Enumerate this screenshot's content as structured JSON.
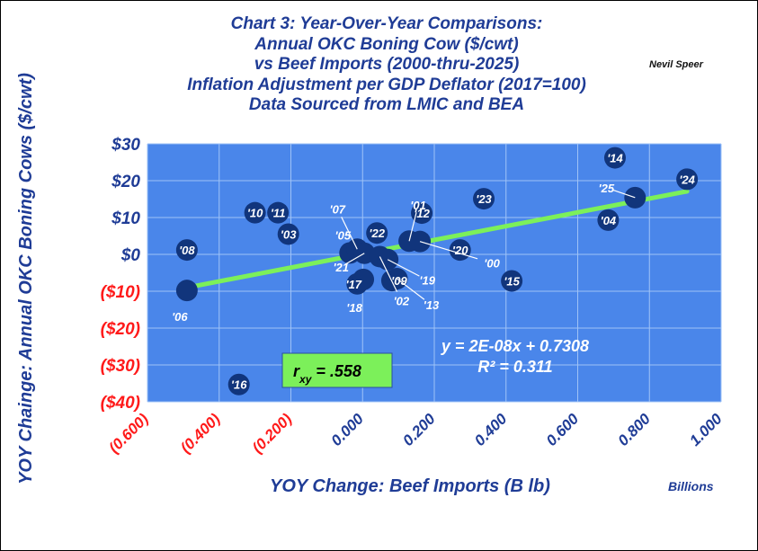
{
  "title_lines": [
    "Chart 3:  Year-Over-Year Comparisons:",
    "Annual OKC Boning Cow ($/cwt)",
    "vs Beef Imports (2000-thru-2025)",
    "Inflation Adjustment per GDP Deflator (2017=100)",
    "Data Sourced from LMIC and BEA"
  ],
  "author": "Nevil Speer",
  "colors": {
    "plot_bg": "#4a86ea",
    "grid": "#9fc3f7",
    "point": "#11357c",
    "trend": "#7cf05a",
    "title": "#1f3c96",
    "negative": "#ff1a1a",
    "rbox": "#7cf05a"
  },
  "chart_data": {
    "type": "scatter",
    "xlabel": "YOY Change:  Beef Imports (B lb)",
    "xunit_label": "Billions",
    "ylabel": "YOY Chainge: Annual OKC Boning Cows ($/cwt)",
    "xlim": [
      -0.6,
      1.0
    ],
    "ylim": [
      -40,
      30
    ],
    "x_ticks": [
      -0.6,
      -0.4,
      -0.2,
      0.0,
      0.2,
      0.4,
      0.6,
      0.8,
      1.0
    ],
    "x_tick_labels": [
      "(0.600)",
      "(0.400)",
      "(0.200)",
      "0.000",
      "0.200",
      "0.400",
      "0.600",
      "0.800",
      "1.000"
    ],
    "y_ticks": [
      30,
      20,
      10,
      0,
      -10,
      -20,
      -30,
      -40
    ],
    "y_tick_labels": [
      "$30",
      "$20",
      "$10",
      "$0",
      "($10)",
      "($20)",
      "($30)",
      "($40)"
    ],
    "grid": true,
    "points": [
      {
        "label": "'06",
        "x": -0.49,
        "y": -9.8
      },
      {
        "label": "'08",
        "x": -0.49,
        "y": 1.2
      },
      {
        "label": "'16",
        "x": -0.345,
        "y": -35.3
      },
      {
        "label": "'10",
        "x": -0.3,
        "y": 11.3
      },
      {
        "label": "'11",
        "x": -0.236,
        "y": 11.3
      },
      {
        "label": "'03",
        "x": -0.207,
        "y": 5.5
      },
      {
        "label": "'05",
        "x": -0.035,
        "y": 0.4
      },
      {
        "label": "'07",
        "x": -0.015,
        "y": 1.4
      },
      {
        "label": "'21",
        "x": 0.005,
        "y": 0.3
      },
      {
        "label": "'17",
        "x": -0.015,
        "y": -8.0
      },
      {
        "label": "'18",
        "x": 0.002,
        "y": -6.8
      },
      {
        "label": "'22",
        "x": 0.04,
        "y": 5.8
      },
      {
        "label": "'02",
        "x": 0.048,
        "y": -0.6
      },
      {
        "label": "'19",
        "x": 0.07,
        "y": -1.4
      },
      {
        "label": "'09",
        "x": 0.082,
        "y": -7.1
      },
      {
        "label": "'13",
        "x": 0.096,
        "y": -6.6
      },
      {
        "label": "'01",
        "x": 0.13,
        "y": 3.6
      },
      {
        "label": "'12",
        "x": 0.165,
        "y": 11.2
      },
      {
        "label": "'00",
        "x": 0.16,
        "y": 3.5
      },
      {
        "label": "'20",
        "x": 0.272,
        "y": 1.2
      },
      {
        "label": "'23",
        "x": 0.338,
        "y": 15.1
      },
      {
        "label": "'15",
        "x": 0.416,
        "y": -7.2
      },
      {
        "label": "'04",
        "x": 0.685,
        "y": 9.3
      },
      {
        "label": "'14",
        "x": 0.704,
        "y": 26.2
      },
      {
        "label": "'25",
        "x": 0.76,
        "y": 15.4
      },
      {
        "label": "'24",
        "x": 0.905,
        "y": 20.4
      }
    ],
    "trendline": {
      "x": [
        -0.49,
        0.905
      ],
      "y": [
        -9.0,
        17.1
      ]
    },
    "equation": "y = 2E-08x + 0.7308",
    "r_squared": "R² = 0.311",
    "rxy_main": "r",
    "rxy_sub": "xy",
    "rxy_value": " = .558"
  }
}
